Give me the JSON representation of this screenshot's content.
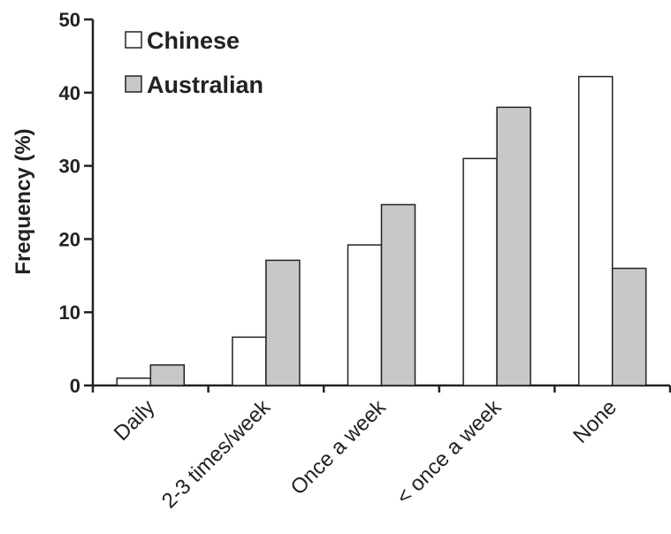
{
  "chart_data": {
    "type": "bar",
    "categories": [
      "Daily",
      "2-3 times/week",
      "Once a week",
      "< once a week",
      "None"
    ],
    "series": [
      {
        "name": "Chinese",
        "color": "#ffffff",
        "values": [
          1.0,
          6.6,
          19.2,
          31.0,
          42.2
        ]
      },
      {
        "name": "Australian",
        "color": "#c8c8c8",
        "values": [
          2.8,
          17.1,
          24.7,
          38.0,
          16.0
        ]
      }
    ],
    "ylabel": "Frequency (%)",
    "ylim": [
      0,
      50
    ],
    "yticks": [
      "0",
      "10",
      "20",
      "30",
      "40",
      "50"
    ],
    "grid": false,
    "legend_position": "top-left"
  }
}
